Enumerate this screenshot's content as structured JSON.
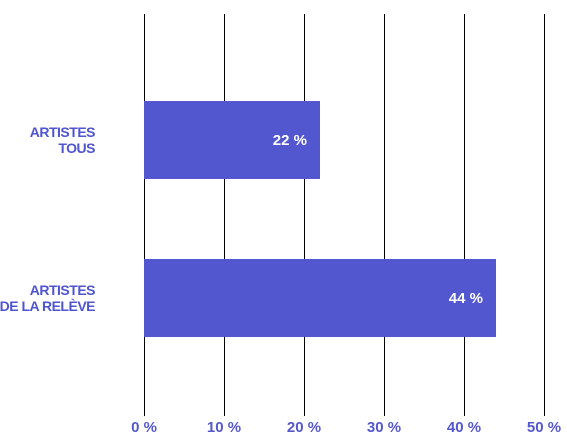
{
  "chart_data": {
    "type": "bar",
    "orientation": "horizontal",
    "categories": [
      [
        "ARTISTES",
        "TOUS"
      ],
      [
        "ARTISTES",
        "DE LA RELÈVE"
      ]
    ],
    "values": [
      22,
      44
    ],
    "data_labels": [
      "22 %",
      "44 %"
    ],
    "xlim": [
      0,
      50
    ],
    "x_ticks": [
      0,
      10,
      20,
      30,
      40,
      50
    ],
    "x_tick_labels": [
      "0 %",
      "10 %",
      "20 %",
      "30 %",
      "40 %",
      "50 %"
    ],
    "grid": "vertical",
    "legend": "none",
    "title": "",
    "xlabel": "",
    "ylabel": "",
    "colors": {
      "bar": "#5257d0",
      "label": "#4f54cf",
      "tick": "#5558cc",
      "grid": "#000000"
    }
  }
}
